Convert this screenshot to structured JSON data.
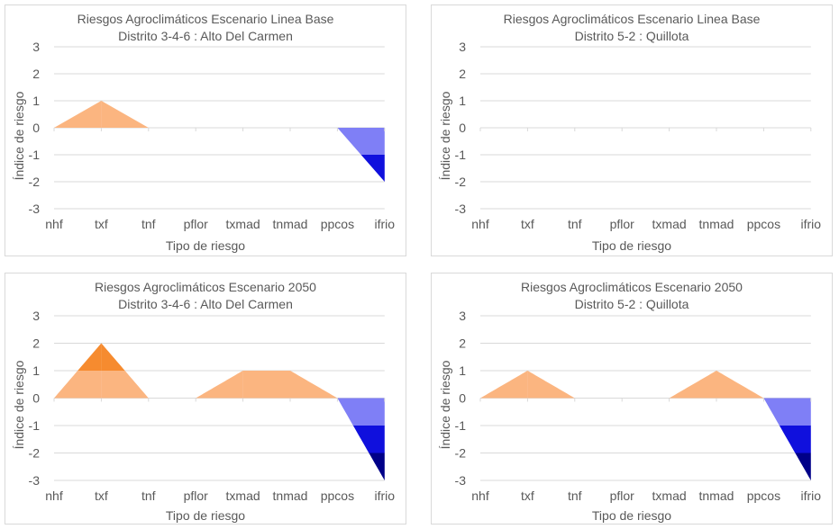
{
  "chart_data": [
    {
      "type": "area",
      "title": "Riesgos Agroclimáticos Escenario Linea Base",
      "subtitle": "Distrito 3-4-6 : Alto Del Carmen",
      "xlabel": "Tipo de riesgo",
      "ylabel": "Índice de riesgo",
      "categories": [
        "nhf",
        "txf",
        "tnf",
        "pflor",
        "txmad",
        "tnmad",
        "ppcos",
        "ifrio"
      ],
      "yticks": [
        "3",
        "2",
        "1",
        "0",
        "-1",
        "-2",
        "-3"
      ],
      "ylim": [
        -3,
        3
      ],
      "grid": true,
      "values": [
        0,
        1,
        0,
        0,
        0,
        0,
        0,
        -2
      ],
      "colors": {
        "positive": [
          "#fbb580",
          "#f68b2f",
          "#d26a10"
        ],
        "negative": [
          "#7f7ff6",
          "#1010dd",
          "#000088"
        ]
      }
    },
    {
      "type": "area",
      "title": "Riesgos Agroclimáticos Escenario Linea Base",
      "subtitle": "Distrito 5-2 : Quillota",
      "xlabel": "Tipo de riesgo",
      "ylabel": "Índice de riesgo",
      "categories": [
        "nhf",
        "txf",
        "tnf",
        "pflor",
        "txmad",
        "tnmad",
        "ppcos",
        "ifrio"
      ],
      "yticks": [
        "3",
        "2",
        "1",
        "0",
        "-1",
        "-2",
        "-3"
      ],
      "ylim": [
        -3,
        3
      ],
      "grid": true,
      "values": [
        0,
        0,
        0,
        0,
        0,
        0,
        0,
        0
      ],
      "colors": {
        "positive": [
          "#fbb580",
          "#f68b2f",
          "#d26a10"
        ],
        "negative": [
          "#7f7ff6",
          "#1010dd",
          "#000088"
        ]
      }
    },
    {
      "type": "area",
      "title": "Riesgos Agroclimáticos Escenario 2050",
      "subtitle": "Distrito 3-4-6 : Alto Del Carmen",
      "xlabel": "Tipo de riesgo",
      "ylabel": "Índice de riesgo",
      "categories": [
        "nhf",
        "txf",
        "tnf",
        "pflor",
        "txmad",
        "tnmad",
        "ppcos",
        "ifrio"
      ],
      "yticks": [
        "3",
        "2",
        "1",
        "0",
        "-1",
        "-2",
        "-3"
      ],
      "ylim": [
        -3,
        3
      ],
      "grid": true,
      "values": [
        0,
        2,
        0,
        0,
        1,
        1,
        0,
        -3
      ],
      "colors": {
        "positive": [
          "#fbb580",
          "#f68b2f",
          "#d26a10"
        ],
        "negative": [
          "#7f7ff6",
          "#1010dd",
          "#000088"
        ]
      }
    },
    {
      "type": "area",
      "title": "Riesgos Agroclimáticos Escenario 2050",
      "subtitle": "Distrito 5-2 : Quillota",
      "xlabel": "Tipo de riesgo",
      "ylabel": "Índice de riesgo",
      "categories": [
        "nhf",
        "txf",
        "tnf",
        "pflor",
        "txmad",
        "tnmad",
        "ppcos",
        "ifrio"
      ],
      "yticks": [
        "3",
        "2",
        "1",
        "0",
        "-1",
        "-2",
        "-3"
      ],
      "ylim": [
        -3,
        3
      ],
      "grid": true,
      "values": [
        0,
        1,
        0,
        0,
        0,
        1,
        0,
        -3
      ],
      "colors": {
        "positive": [
          "#fbb580",
          "#f68b2f",
          "#d26a10"
        ],
        "negative": [
          "#7f7ff6",
          "#1010dd",
          "#000088"
        ]
      }
    }
  ]
}
